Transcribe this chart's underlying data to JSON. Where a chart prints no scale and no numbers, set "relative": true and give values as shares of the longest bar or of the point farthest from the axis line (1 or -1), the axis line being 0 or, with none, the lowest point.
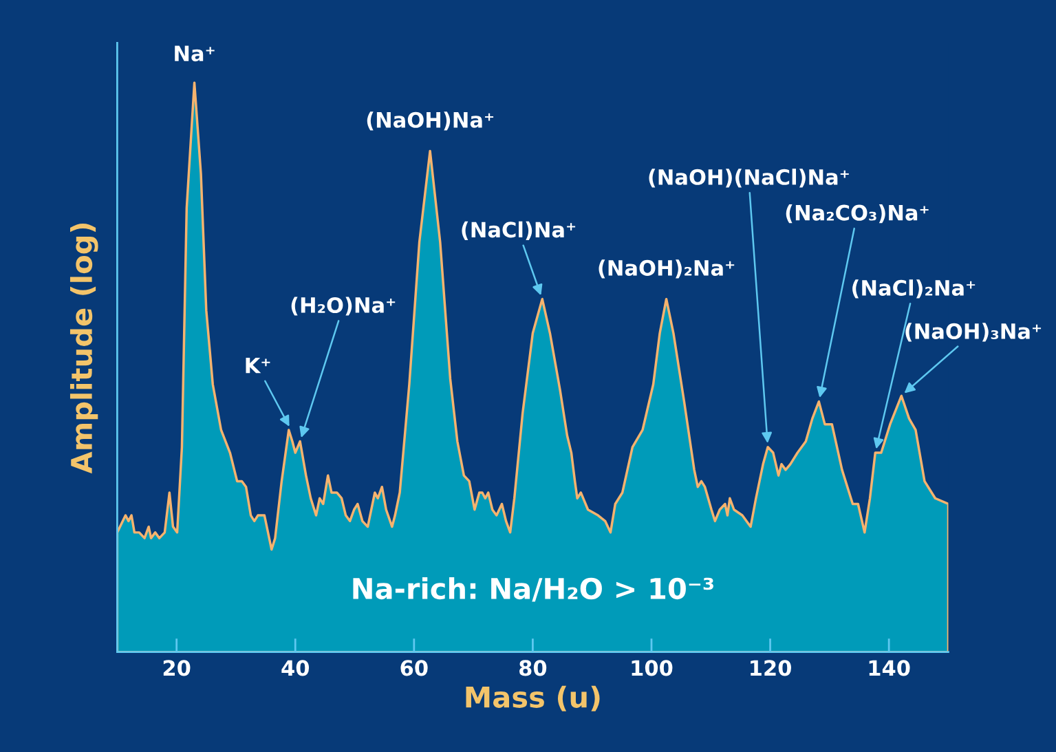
{
  "chart_data": {
    "type": "area",
    "relative": true,
    "xlabel": "Mass (u)",
    "ylabel": "Amplitude (log)",
    "xlim": [
      10,
      150
    ],
    "xticks": [
      20,
      40,
      60,
      80,
      100,
      120,
      140
    ],
    "tick_labels": "x",
    "grid": false,
    "legend": false,
    "series": [
      {
        "color": "#009bb9",
        "x": [
          10.0,
          11.4,
          11.9,
          12.4,
          12.9,
          13.7,
          14.6,
          15.3,
          15.7,
          16.4,
          17.1,
          18.0,
          18.8,
          19.4,
          20.1,
          20.9,
          21.7,
          23.0,
          24.1,
          25.0,
          26.1,
          27.5,
          29.0,
          30.2,
          31.0,
          31.7,
          32.5,
          33.1,
          33.7,
          34.2,
          34.8,
          35.4,
          36.0,
          36.6,
          37.7,
          38.9,
          39.5,
          40.0,
          40.8,
          41.8,
          42.6,
          43.5,
          44.1,
          44.7,
          45.5,
          46.1,
          47.0,
          47.8,
          48.5,
          49.2,
          49.9,
          50.5,
          51.3,
          52.2,
          52.8,
          53.4,
          53.9,
          54.6,
          55.3,
          56.3,
          56.8,
          57.6,
          59.2,
          60.9,
          62.7,
          64.4,
          66.1,
          67.3,
          68.4,
          69.3,
          70.2,
          71.0,
          71.5,
          72.0,
          72.5,
          73.2,
          73.9,
          74.8,
          75.5,
          76.2,
          76.9,
          78.3,
          80.0,
          81.6,
          82.9,
          84.6,
          85.8,
          86.5,
          87.1,
          87.5,
          88.1,
          89.3,
          91.0,
          92.2,
          93.1,
          93.9,
          95.1,
          96.8,
          98.5,
          100.3,
          101.4,
          102.5,
          103.7,
          105.5,
          107.2,
          107.8,
          108.4,
          109.0,
          110.1,
          110.7,
          111.5,
          112.4,
          112.8,
          113.2,
          113.9,
          115.3,
          116.7,
          117.6,
          118.8,
          119.6,
          120.5,
          121.4,
          121.9,
          122.6,
          123.4,
          124.6,
          126.0,
          127.1,
          128.2,
          129.2,
          130.4,
          132.1,
          133.9,
          134.8,
          135.9,
          136.8,
          137.7,
          138.7,
          140.2,
          142.1,
          143.4,
          144.5,
          146.0,
          147.8,
          150.0
        ],
        "values": [
          0.21,
          0.24,
          0.23,
          0.24,
          0.21,
          0.21,
          0.2,
          0.22,
          0.2,
          0.21,
          0.2,
          0.21,
          0.28,
          0.22,
          0.21,
          0.36,
          0.78,
          1,
          0.84,
          0.6,
          0.47,
          0.39,
          0.35,
          0.3,
          0.3,
          0.29,
          0.24,
          0.23,
          0.24,
          0.24,
          0.24,
          0.21,
          0.18,
          0.2,
          0.3,
          0.39,
          0.37,
          0.35,
          0.37,
          0.31,
          0.27,
          0.24,
          0.27,
          0.26,
          0.31,
          0.28,
          0.28,
          0.27,
          0.24,
          0.23,
          0.25,
          0.26,
          0.23,
          0.22,
          0.25,
          0.28,
          0.27,
          0.29,
          0.25,
          0.22,
          0.24,
          0.28,
          0.47,
          0.72,
          0.88,
          0.72,
          0.48,
          0.37,
          0.31,
          0.3,
          0.25,
          0.28,
          0.28,
          0.27,
          0.28,
          0.25,
          0.24,
          0.26,
          0.23,
          0.21,
          0.27,
          0.42,
          0.56,
          0.62,
          0.56,
          0.46,
          0.38,
          0.35,
          0.3,
          0.27,
          0.28,
          0.25,
          0.24,
          0.23,
          0.21,
          0.26,
          0.28,
          0.36,
          0.39,
          0.47,
          0.56,
          0.62,
          0.56,
          0.44,
          0.32,
          0.29,
          0.3,
          0.29,
          0.25,
          0.23,
          0.25,
          0.26,
          0.24,
          0.27,
          0.25,
          0.24,
          0.22,
          0.27,
          0.33,
          0.36,
          0.35,
          0.31,
          0.33,
          0.32,
          0.33,
          0.35,
          0.37,
          0.41,
          0.44,
          0.4,
          0.4,
          0.32,
          0.26,
          0.26,
          0.21,
          0.27,
          0.35,
          0.35,
          0.4,
          0.45,
          0.41,
          0.39,
          0.3,
          0.27,
          0.26
        ]
      }
    ],
    "annotations": [
      {
        "text": "Na⁺",
        "x": 23.0,
        "y": 1
      },
      {
        "text": "K⁺",
        "x": 39.3,
        "y": 0.39
      },
      {
        "text": "(H₂O)Na⁺",
        "x": 40.8,
        "y": 0.37
      },
      {
        "text": "(NaOH)Na⁺",
        "x": 62.7,
        "y": 0.88
      },
      {
        "text": "(NaCl)Na⁺",
        "x": 81.6,
        "y": 0.62
      },
      {
        "text": "(NaOH)₂Na⁺",
        "x": 102.5,
        "y": 0.62
      },
      {
        "text": "(NaOH)(NaCl)Na⁺",
        "x": 119.6,
        "y": 0.36
      },
      {
        "text": "(Na₂CO₃)Na⁺",
        "x": 128.2,
        "y": 0.44
      },
      {
        "text": "(NaCl)₂Na⁺",
        "x": 137.7,
        "y": 0.35
      },
      {
        "text": "(NaOH)₃Na⁺",
        "x": 142.1,
        "y": 0.45
      },
      "Na-rich: Na/H₂O > 10⁻³"
    ]
  }
}
